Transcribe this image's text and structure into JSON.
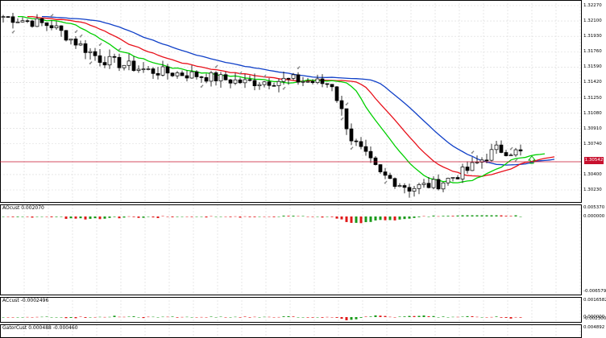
{
  "main_chart": {
    "price_ticks": [
      "1.32270",
      "1.32100",
      "1.31930",
      "1.31760",
      "1.31590",
      "1.31420",
      "1.31250",
      "1.31080",
      "1.30910",
      "1.30740",
      "1.30400",
      "1.30230"
    ],
    "price_tick_values": [
      1.3227,
      1.321,
      1.3193,
      1.3176,
      1.3159,
      1.3142,
      1.3125,
      1.3108,
      1.3091,
      1.3074,
      1.304,
      1.3023
    ],
    "current_price": "1.30542",
    "current_price_value": 1.30542,
    "colors": {
      "price_line": "#c8102e",
      "ma_green": "#00d000",
      "ma_red": "#e8101a",
      "ma_blue": "#1040c8",
      "candles": "#000000",
      "arrow_up": "#00b000"
    }
  },
  "panels": [
    {
      "label": "AOcust 0.002070",
      "ticks": [
        "0.005370",
        "0.000000",
        "-0.006579"
      ],
      "tick_values": [
        0.00537,
        0,
        -0.006579
      ]
    },
    {
      "label": "ACcust -0.0002496",
      "ticks": [
        "0.0016582",
        "0.000000",
        "-0.0023008"
      ],
      "tick_values": [
        0.0016582,
        0,
        -0.0023008
      ]
    },
    {
      "label": "GatorCust 0.000488 -0.000460",
      "ticks": [
        "0.004892"
      ],
      "tick_values": [
        0.004892
      ]
    }
  ]
}
